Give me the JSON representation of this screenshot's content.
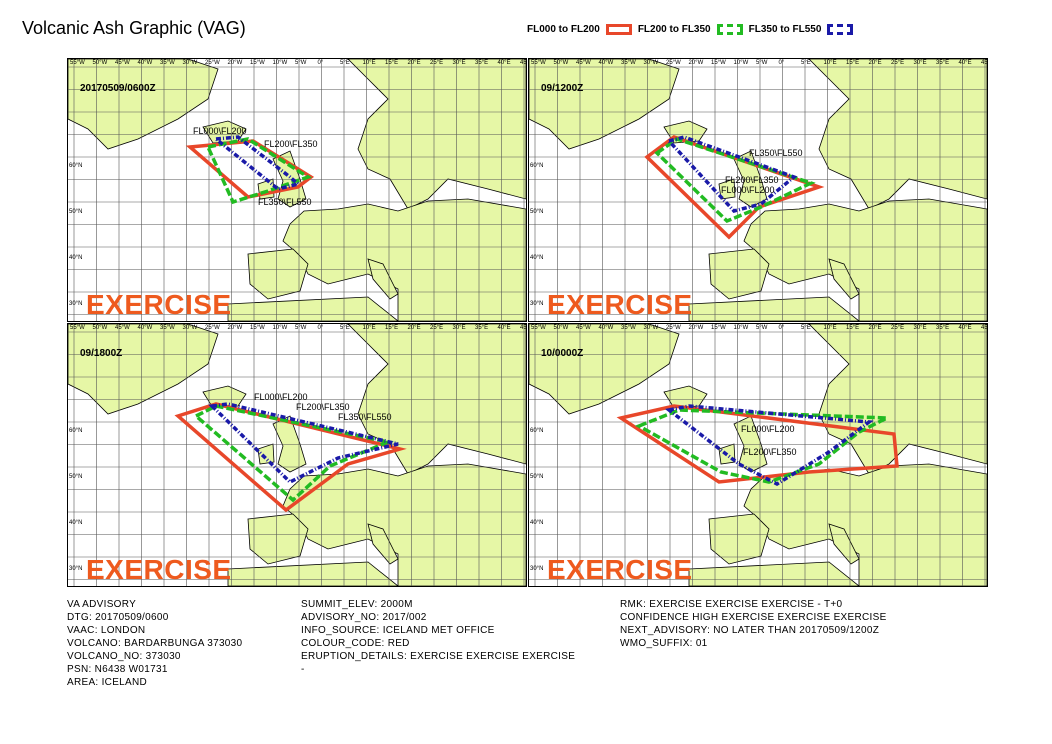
{
  "title": "Volcanic Ash Graphic (VAG)",
  "legend": [
    {
      "label": "FL000 to FL200",
      "color": "#e8472a",
      "style": "solid"
    },
    {
      "label": "FL200 to FL350",
      "color": "#22bb22",
      "style": "dashed"
    },
    {
      "label": "FL350 to FL550",
      "color": "#1a1aa8",
      "style": "dashed"
    }
  ],
  "exercise_text": "EXERCISE",
  "lon_ticks": [
    "55°W",
    "50°W",
    "45°W",
    "40°W",
    "35°W",
    "30°W",
    "25°W",
    "20°W",
    "15°W",
    "10°W",
    "5°W",
    "0°",
    "5°E",
    "10°E",
    "15°E",
    "20°E",
    "25°E",
    "30°E",
    "35°E",
    "40°E",
    "45°E"
  ],
  "lat_ticks": [
    "60°N",
    "50°N",
    "40°N",
    "30°N"
  ],
  "panels": [
    {
      "label": "20170509/0600Z",
      "fl_labels": [
        "FL000\\FL200",
        "FL200\\FL350",
        "FL350\\FL550"
      ]
    },
    {
      "label": "09/1200Z",
      "fl_labels": [
        "FL350\\FL550",
        "FL200\\FL350",
        "FL000\\FL200"
      ]
    },
    {
      "label": "09/1800Z",
      "fl_labels": [
        "FL000\\FL200",
        "FL200\\FL350",
        "FL350\\FL550"
      ]
    },
    {
      "label": "10/0000Z",
      "fl_labels": [
        "FL000\\FL200",
        "FL200\\FL350"
      ]
    }
  ],
  "advisory": {
    "col1": [
      "VA ADVISORY",
      "DTG: 20170509/0600",
      "VAAC: LONDON",
      "VOLCANO: BARDARBUNGA 373030",
      "VOLCANO_NO: 373030",
      "PSN: N6438 W01731",
      "AREA: ICELAND"
    ],
    "col2": [
      "SUMMIT_ELEV: 2000M",
      "ADVISORY_NO: 2017/002",
      "INFO_SOURCE: ICELAND MET OFFICE",
      "COLOUR_CODE: RED",
      "ERUPTION_DETAILS: EXERCISE EXERCISE EXERCISE",
      "-"
    ],
    "col3": [
      "RMK: EXERCISE EXERCISE EXERCISE - T+0",
      "CONFIDENCE HIGH EXERCISE EXERCISE EXERCISE",
      "NEXT_ADVISORY: NO LATER THAN 20170509/1200Z",
      "WMO_SUFFIX: 01"
    ]
  }
}
